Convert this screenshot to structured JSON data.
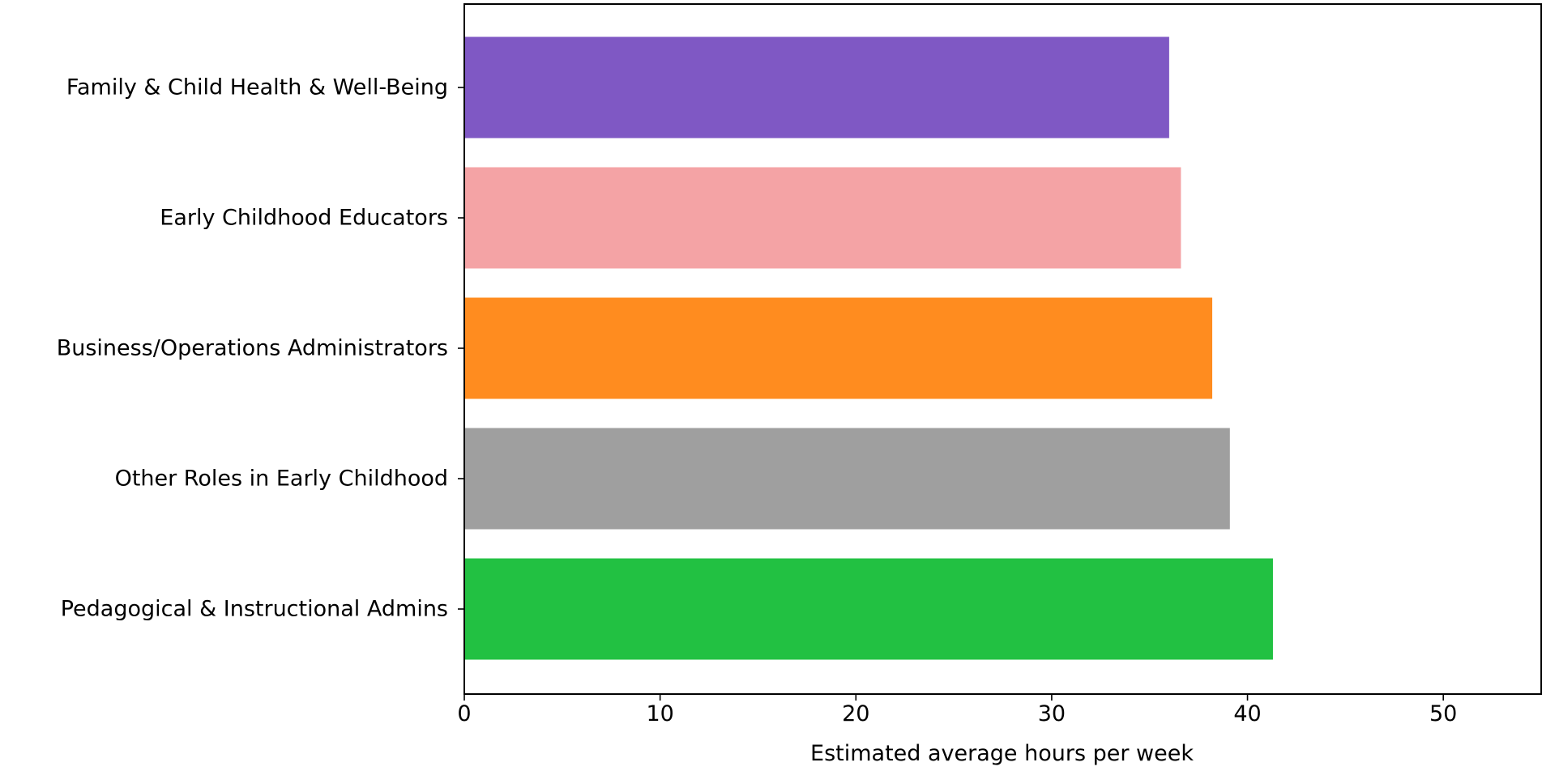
{
  "chart_data": {
    "type": "bar",
    "orientation": "horizontal",
    "title": "",
    "xlabel": "Estimated average hours per week",
    "ylabel": "",
    "xlim": [
      0,
      55
    ],
    "xticks": [
      0,
      10,
      20,
      30,
      40,
      50
    ],
    "xtick_labels": [
      "0",
      "10",
      "20",
      "30",
      "40",
      "50"
    ],
    "grid": false,
    "legend": "none",
    "categories": [
      "Family & Child Health & Well-Being",
      "Early Childhood Educators",
      "Business/Operations Administrators",
      "Other Roles in Early Childhood",
      "Pedagogical & Instructional Admins"
    ],
    "values": [
      36.0,
      36.6,
      38.2,
      39.1,
      41.3
    ],
    "colors": [
      "#7f58c4",
      "#f4a3a5",
      "#ff8c1f",
      "#9f9f9f",
      "#22c142"
    ]
  }
}
